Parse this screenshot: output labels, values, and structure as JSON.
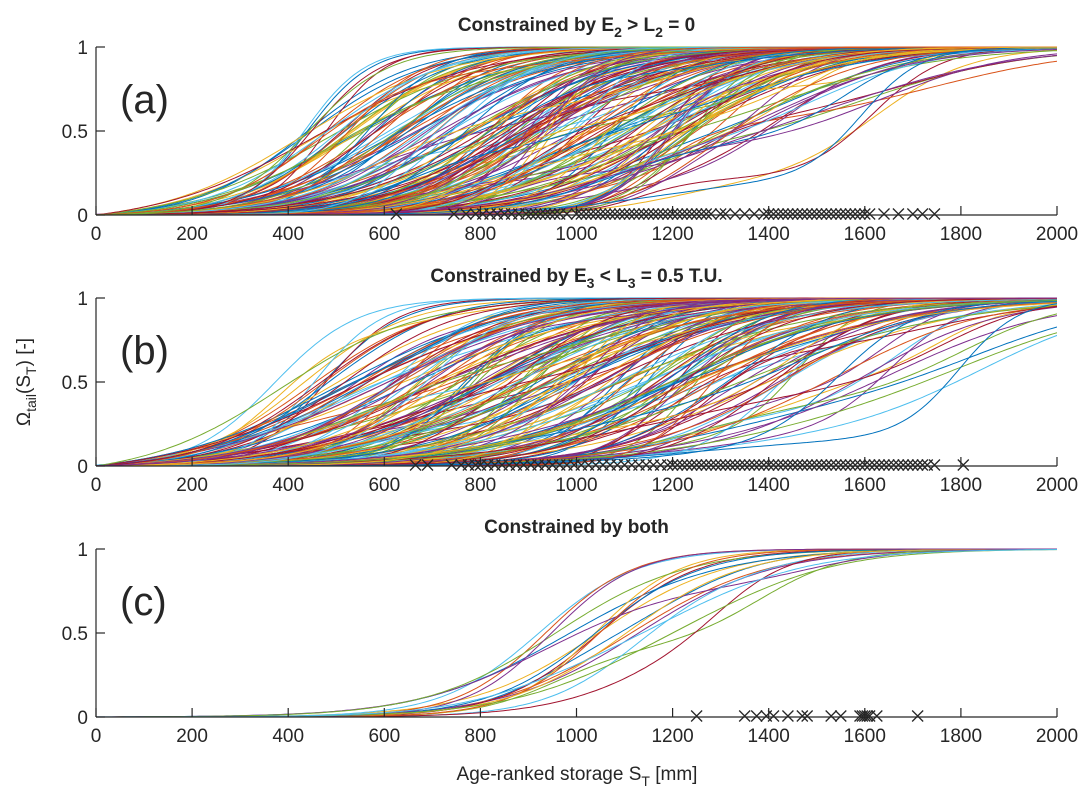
{
  "figure": {
    "ylabel": "Ω_tail(S_T) [-]",
    "xlabel": "Age-ranked storage S_T [mm]"
  },
  "style": {
    "axis_color": "#262626",
    "marker_color": "#262626",
    "curve_palette": [
      "#0072BD",
      "#D95319",
      "#EDB120",
      "#7E2F8E",
      "#77AC30",
      "#4DBEEE",
      "#A2142F"
    ]
  },
  "chart_data": [
    {
      "type": "line",
      "panel_letter": "(a)",
      "title": "Constrained by E_2 > L_2 = 0",
      "xlim": [
        0,
        2000
      ],
      "ylim": [
        0,
        1
      ],
      "x_ticks": [
        "0",
        "200",
        "400",
        "600",
        "800",
        "1000",
        "1200",
        "1400",
        "1600",
        "1800",
        "2000"
      ],
      "y_ticks": [
        "0",
        "0.5",
        "1"
      ],
      "series_description": "ensemble of approx. 200 cumulative curves rising from 0 to 1",
      "cdf_ensemble": {
        "count": 200,
        "mid_range": [
          430,
          1260
        ],
        "width_range": [
          60,
          170
        ],
        "seed": 7
      },
      "markers": {
        "symbol": "×",
        "x": [
          625,
          745,
          770,
          790,
          805,
          820,
          835,
          850,
          865,
          880,
          895,
          905,
          915,
          925,
          935,
          945,
          955,
          965,
          980,
          1000,
          1010,
          1020,
          1030,
          1040,
          1050,
          1060,
          1070,
          1080,
          1090,
          1100,
          1110,
          1120,
          1130,
          1140,
          1150,
          1160,
          1170,
          1180,
          1190,
          1200,
          1210,
          1220,
          1230,
          1240,
          1250,
          1260,
          1270,
          1280,
          1300,
          1310,
          1330,
          1350,
          1370,
          1390,
          1400,
          1410,
          1420,
          1430,
          1440,
          1450,
          1460,
          1470,
          1480,
          1490,
          1500,
          1510,
          1520,
          1530,
          1540,
          1550,
          1560,
          1570,
          1580,
          1590,
          1600,
          1610,
          1640,
          1670,
          1700,
          1720,
          1745
        ]
      }
    },
    {
      "type": "line",
      "panel_letter": "(b)",
      "title": "Constrained by E_3 < L_3 = 0.5 T.U.",
      "xlim": [
        0,
        2000
      ],
      "ylim": [
        0,
        1
      ],
      "x_ticks": [
        "0",
        "200",
        "400",
        "600",
        "800",
        "1000",
        "1200",
        "1400",
        "1600",
        "1800",
        "2000"
      ],
      "y_ticks": [
        "0",
        "0.5",
        "1"
      ],
      "series_description": "ensemble of approx. 200 cumulative curves rising from 0 to 1",
      "cdf_ensemble": {
        "count": 200,
        "mid_range": [
          350,
          1450
        ],
        "width_range": [
          70,
          230
        ],
        "seed": 13
      },
      "markers": {
        "symbol": "×",
        "x": [
          665,
          690,
          740,
          760,
          775,
          790,
          800,
          815,
          830,
          845,
          860,
          875,
          890,
          905,
          920,
          935,
          950,
          965,
          980,
          995,
          1010,
          1025,
          1040,
          1055,
          1070,
          1085,
          1100,
          1115,
          1130,
          1145,
          1160,
          1175,
          1190,
          1200,
          1210,
          1220,
          1230,
          1240,
          1250,
          1260,
          1270,
          1280,
          1290,
          1300,
          1310,
          1320,
          1330,
          1340,
          1350,
          1360,
          1370,
          1380,
          1390,
          1400,
          1410,
          1420,
          1430,
          1440,
          1450,
          1460,
          1470,
          1480,
          1490,
          1500,
          1510,
          1520,
          1530,
          1540,
          1550,
          1560,
          1570,
          1580,
          1590,
          1600,
          1610,
          1620,
          1630,
          1640,
          1650,
          1660,
          1670,
          1680,
          1690,
          1700,
          1710,
          1720,
          1730,
          1745,
          1805
        ]
      }
    },
    {
      "type": "line",
      "panel_letter": "(c)",
      "title": "Constrained by both",
      "xlim": [
        0,
        2000
      ],
      "ylim": [
        0,
        1
      ],
      "x_ticks": [
        "0",
        "200",
        "400",
        "600",
        "800",
        "1000",
        "1200",
        "1400",
        "1600",
        "1800",
        "2000"
      ],
      "y_ticks": [
        "0",
        "0.5",
        "1"
      ],
      "series_description": "ensemble of approx. 20 cumulative curves rising from 0 to 1",
      "cdf_ensemble": {
        "count": 20,
        "mid_range": [
          880,
          1150
        ],
        "width_range": [
          80,
          150
        ],
        "seed": 29
      },
      "markers": {
        "symbol": "×",
        "x": [
          1250,
          1350,
          1375,
          1395,
          1410,
          1440,
          1470,
          1480,
          1530,
          1550,
          1590,
          1595,
          1600,
          1605,
          1610,
          1625,
          1710
        ]
      }
    }
  ]
}
